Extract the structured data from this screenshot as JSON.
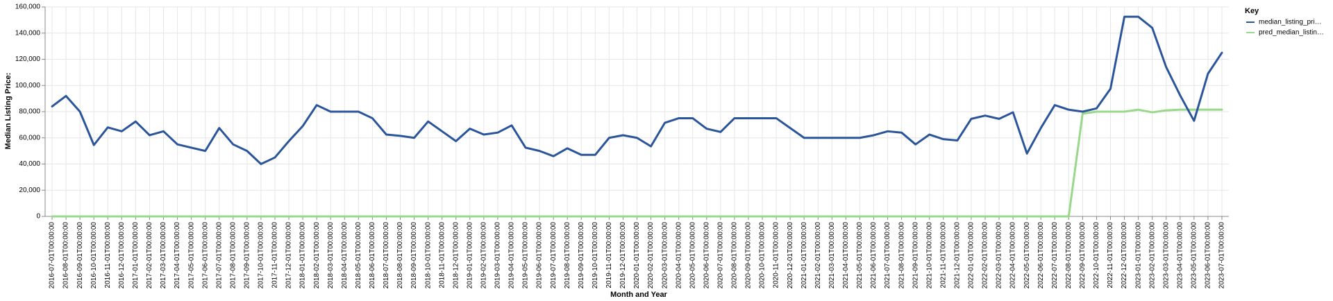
{
  "chart_data": {
    "type": "line",
    "xlabel": "Month and Year",
    "ylabel": "Median Listing Price:",
    "ylim": [
      0,
      160000
    ],
    "yticks": [
      0,
      20000,
      40000,
      60000,
      80000,
      100000,
      120000,
      140000,
      160000
    ],
    "ytick_labels": [
      "0",
      "20,000",
      "40,000",
      "60,000",
      "80,000",
      "100,000",
      "120,000",
      "140,000",
      "160,000"
    ],
    "grid": true,
    "legend": {
      "title": "Key",
      "placement": "top-right"
    },
    "x": [
      "2016-07-01T00:00:00",
      "2016-08-01T00:00:00",
      "2016-09-01T00:00:00",
      "2016-10-01T00:00:00",
      "2016-11-01T00:00:00",
      "2016-12-01T00:00:00",
      "2017-01-01T00:00:00",
      "2017-02-01T00:00:00",
      "2017-03-01T00:00:00",
      "2017-04-01T00:00:00",
      "2017-05-01T00:00:00",
      "2017-06-01T00:00:00",
      "2017-07-01T00:00:00",
      "2017-08-01T00:00:00",
      "2017-09-01T00:00:00",
      "2017-10-01T00:00:00",
      "2017-11-01T00:00:00",
      "2017-12-01T00:00:00",
      "2018-01-01T00:00:00",
      "2018-02-01T00:00:00",
      "2018-03-01T00:00:00",
      "2018-04-01T00:00:00",
      "2018-05-01T00:00:00",
      "2018-06-01T00:00:00",
      "2018-07-01T00:00:00",
      "2018-08-01T00:00:00",
      "2018-09-01T00:00:00",
      "2018-10-01T00:00:00",
      "2018-11-01T00:00:00",
      "2018-12-01T00:00:00",
      "2019-01-01T00:00:00",
      "2019-02-01T00:00:00",
      "2019-03-01T00:00:00",
      "2019-04-01T00:00:00",
      "2019-05-01T00:00:00",
      "2019-06-01T00:00:00",
      "2019-07-01T00:00:00",
      "2019-08-01T00:00:00",
      "2019-09-01T00:00:00",
      "2019-10-01T00:00:00",
      "2019-11-01T00:00:00",
      "2019-12-01T00:00:00",
      "2020-01-01T00:00:00",
      "2020-02-01T00:00:00",
      "2020-03-01T00:00:00",
      "2020-04-01T00:00:00",
      "2020-05-01T00:00:00",
      "2020-06-01T00:00:00",
      "2020-07-01T00:00:00",
      "2020-08-01T00:00:00",
      "2020-09-01T00:00:00",
      "2020-10-01T00:00:00",
      "2020-11-01T00:00:00",
      "2020-12-01T00:00:00",
      "2021-01-01T00:00:00",
      "2021-02-01T00:00:00",
      "2021-03-01T00:00:00",
      "2021-04-01T00:00:00",
      "2021-05-01T00:00:00",
      "2021-06-01T00:00:00",
      "2021-07-01T00:00:00",
      "2021-08-01T00:00:00",
      "2021-09-01T00:00:00",
      "2021-10-01T00:00:00",
      "2021-11-01T00:00:00",
      "2021-12-01T00:00:00",
      "2022-01-01T00:00:00",
      "2022-02-01T00:00:00",
      "2022-03-01T00:00:00",
      "2022-04-01T00:00:00",
      "2022-05-01T00:00:00",
      "2022-06-01T00:00:00",
      "2022-07-01T00:00:00",
      "2022-08-01T00:00:00",
      "2022-09-01T00:00:00",
      "2022-10-01T00:00:00",
      "2022-11-01T00:00:00",
      "2022-12-01T00:00:00",
      "2023-01-01T00:00:00",
      "2023-02-01T00:00:00",
      "2023-03-01T00:00:00",
      "2023-04-01T00:00:00",
      "2023-05-01T00:00:00",
      "2023-06-01T00:00:00",
      "2023-07-01T00:00:00"
    ],
    "series": [
      {
        "name": "median_listing_pri…",
        "color": "#2b559a",
        "values": [
          84000,
          92000,
          80000,
          54500,
          68000,
          65000,
          72500,
          62000,
          65000,
          55000,
          52500,
          50000,
          67500,
          55000,
          50000,
          40000,
          45000,
          57500,
          69000,
          85000,
          80000,
          80000,
          80000,
          75000,
          62500,
          61500,
          60000,
          72500,
          65000,
          57500,
          67000,
          62500,
          64000,
          69500,
          52500,
          50000,
          46000,
          52000,
          47000,
          47000,
          60000,
          62000,
          60000,
          53500,
          71500,
          75000,
          75000,
          67000,
          64500,
          75000,
          75000,
          75000,
          75000,
          67500,
          60000,
          60000,
          60000,
          60000,
          60000,
          62000,
          65000,
          64000,
          55000,
          62500,
          59000,
          58000,
          74500,
          77000,
          74500,
          79500,
          48000,
          67500,
          85000,
          81500,
          80000,
          82500,
          97500,
          152500,
          152500,
          144000,
          114000,
          92500,
          73000,
          109000,
          125000
        ]
      },
      {
        "name": "pred_median_listin…",
        "color": "#98d889",
        "values": [
          0,
          0,
          0,
          0,
          0,
          0,
          0,
          0,
          0,
          0,
          0,
          0,
          0,
          0,
          0,
          0,
          0,
          0,
          0,
          0,
          0,
          0,
          0,
          0,
          0,
          0,
          0,
          0,
          0,
          0,
          0,
          0,
          0,
          0,
          0,
          0,
          0,
          0,
          0,
          0,
          0,
          0,
          0,
          0,
          0,
          0,
          0,
          0,
          0,
          0,
          0,
          0,
          0,
          0,
          0,
          0,
          0,
          0,
          0,
          0,
          0,
          0,
          0,
          0,
          0,
          0,
          0,
          0,
          0,
          0,
          0,
          0,
          0,
          0,
          78500,
          80000,
          80000,
          80000,
          81500,
          79500,
          81000,
          81500,
          81500,
          81500,
          81500
        ]
      }
    ]
  }
}
